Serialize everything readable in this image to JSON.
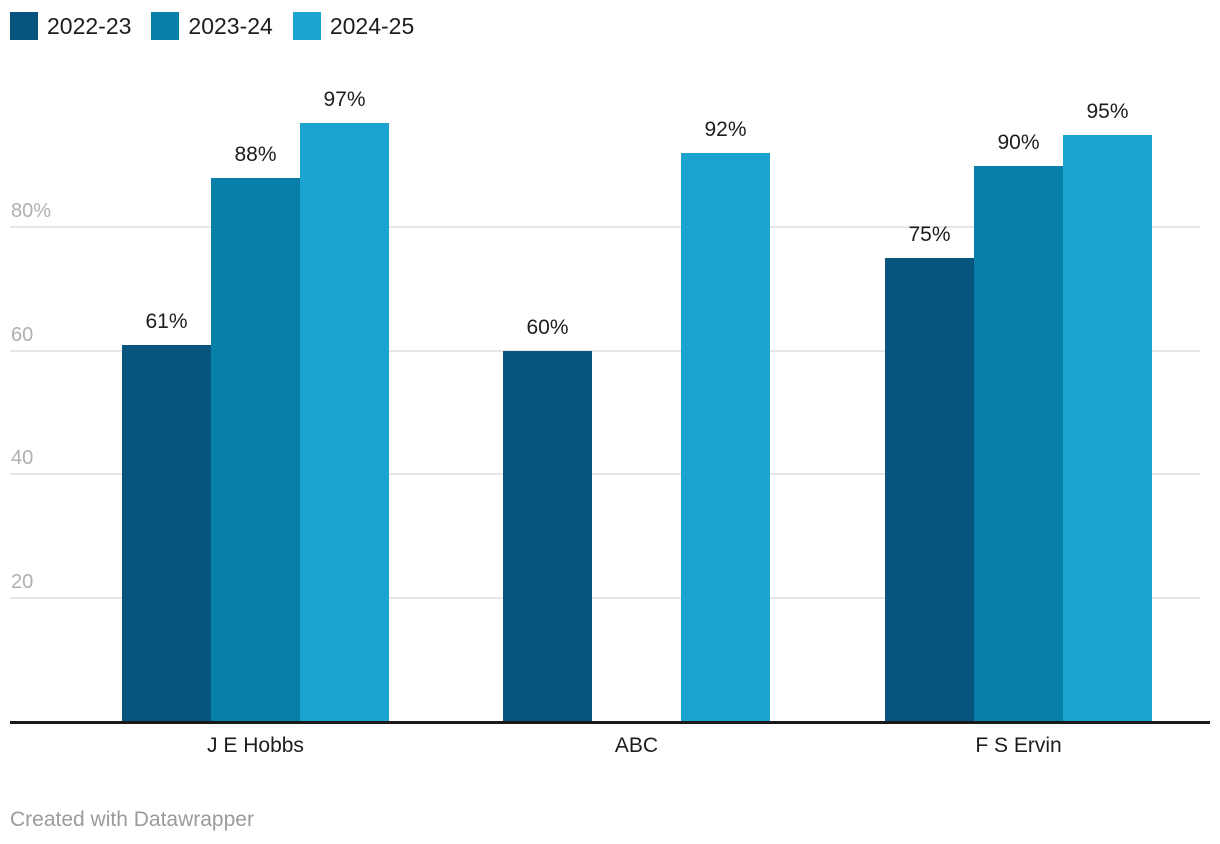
{
  "chart_data": {
    "type": "bar",
    "title": "",
    "categories": [
      "J E Hobbs",
      "ABC",
      "F S Ervin"
    ],
    "series": [
      {
        "name": "2022-23",
        "color": "#07547e",
        "values": [
          61,
          60,
          75
        ]
      },
      {
        "name": "2023-24",
        "color": "#077fa9",
        "values": [
          88,
          null,
          90
        ]
      },
      {
        "name": "2024-25",
        "color": "#1da3d0",
        "values": [
          97,
          92,
          95
        ]
      }
    ],
    "value_label_suffix": "%",
    "y_ticks": [
      {
        "value": 80,
        "label": "80%"
      },
      {
        "value": 60,
        "label": "60"
      },
      {
        "value": 40,
        "label": "40"
      },
      {
        "value": 20,
        "label": "20"
      }
    ],
    "ylim": [
      0,
      100
    ],
    "grid": true,
    "legend_position": "top-left",
    "colors": {
      "gridline": "#e6e6e6",
      "axis_line": "#1a1a1a",
      "tick_text": "#b0b0b0",
      "label_text": "#1d1d1d",
      "footer_text": "#9b9b9b",
      "background": "#ffffff"
    }
  },
  "footer": {
    "attribution": "Created with Datawrapper"
  }
}
